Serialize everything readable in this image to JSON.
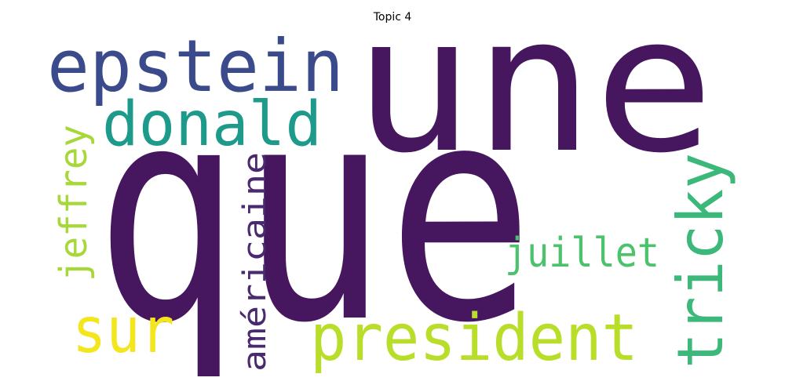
{
  "title": "Topic 4",
  "words": [
    {
      "text": "que",
      "color": "#46175F"
    },
    {
      "text": "une",
      "color": "#46175F"
    },
    {
      "text": "epstein",
      "color": "#3B4A8B"
    },
    {
      "text": "donald",
      "color": "#1E9A8A"
    },
    {
      "text": "tricky",
      "color": "#3BB87A"
    },
    {
      "text": "president",
      "color": "#B8DE29"
    },
    {
      "text": "juillet",
      "color": "#4CC26C"
    },
    {
      "text": "sur",
      "color": "#F4E61E"
    },
    {
      "text": "jeffrey",
      "color": "#A7D83A"
    },
    {
      "text": "américaine",
      "color": "#4A2A6E"
    }
  ]
}
